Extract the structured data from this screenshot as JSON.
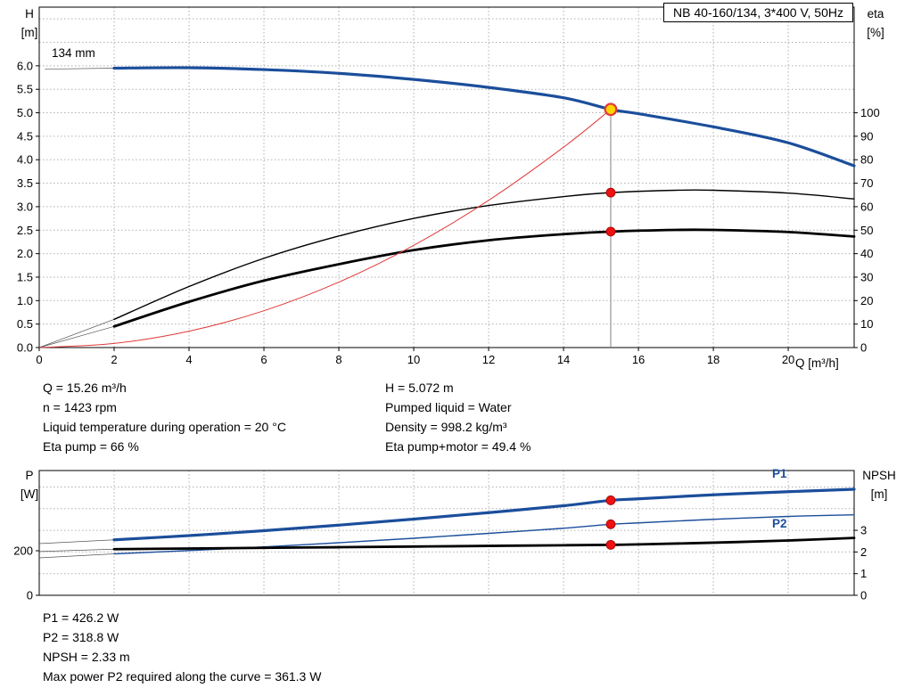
{
  "title_box": {
    "label": "NB 40-160/134, 3*400 V, 50Hz"
  },
  "labels": {
    "top_left_1": "H",
    "top_left_2": "[m]",
    "top_right_1": "eta",
    "top_right_2": "[%]",
    "x_label": "Q [m³/h]",
    "bottom_left_1": "P",
    "bottom_left_2": "[W]",
    "bottom_right_1": "NPSH",
    "bottom_right_2": "[m]",
    "impeller": "134 mm",
    "p1": "P1",
    "p2": "P2"
  },
  "operating_point_text": {
    "left": [
      "Q = 15.26 m³/h",
      "n = 1423 rpm",
      "Liquid temperature during operation = 20 °C",
      "Eta pump = 66 %"
    ],
    "right": [
      "H = 5.072 m",
      "Pumped liquid = Water",
      "Density = 998.2 kg/m³",
      "Eta pump+motor = 49.4 %"
    ]
  },
  "power_text": [
    "P1 = 426.2 W",
    "P2 = 318.8 W",
    "NPSH = 2.33 m",
    "Max power P2 required along the curve = 361.3 W"
  ],
  "colors": {
    "curve_blue": "#1b4e9b",
    "curve_black": "#000000",
    "curve_red": "#e03a3a",
    "duty_fill": "#ffd400",
    "duty_ring": "#e03a3a",
    "dot_red": "#ee1111",
    "grid": "#b0b0b0",
    "vline": "#808080"
  },
  "duty_point": {
    "q_m3h": 15.26,
    "h_m": 5.072,
    "eta_pump_pct": 66,
    "eta_pump_motor_pct": 49.4,
    "p1_w": 426.2,
    "p2_w": 318.8,
    "npsh_m": 2.33
  },
  "chart_data": [
    {
      "type": "line",
      "name": "qh-eta-chart",
      "title": "NB 40-160/134, 3*400 V, 50Hz",
      "xlabel": "Q [m³/h]",
      "xlim": [
        0,
        21.76
      ],
      "x_ticks": [
        0,
        2,
        4,
        6,
        8,
        10,
        12,
        14,
        16,
        18,
        20
      ],
      "left_axis": {
        "label": "H [m]",
        "range": [
          0,
          7.25
        ],
        "ticks": [
          0,
          0.5,
          1,
          1.5,
          2,
          2.5,
          3,
          3.5,
          4,
          4.5,
          5,
          5.5,
          6
        ],
        "decimals": 1
      },
      "right_axis": {
        "label": "eta [%]",
        "range": [
          0,
          145
        ],
        "ticks": [
          0,
          10,
          20,
          30,
          40,
          50,
          60,
          70,
          80,
          90,
          100
        ],
        "decimals": 0
      },
      "grid": {
        "x": [
          2,
          4,
          6,
          8,
          10,
          12,
          14,
          16,
          18,
          20
        ],
        "left": [
          0.5,
          1,
          1.5,
          2,
          2.5,
          3,
          3.5,
          4,
          4.5,
          5,
          5.5,
          6,
          6.5,
          7
        ]
      },
      "series": [
        {
          "name": "head-curve",
          "legend": "H (134 mm)",
          "axis": "left",
          "color": "#1b4e9b",
          "width": 3.2,
          "points": [
            [
              2,
              5.95
            ],
            [
              4,
              5.96
            ],
            [
              6,
              5.92
            ],
            [
              8,
              5.84
            ],
            [
              10,
              5.71
            ],
            [
              12,
              5.54
            ],
            [
              14,
              5.32
            ],
            [
              15.26,
              5.072
            ],
            [
              16,
              4.98
            ],
            [
              18,
              4.7
            ],
            [
              20,
              4.36
            ],
            [
              21.76,
              3.87
            ]
          ]
        },
        {
          "name": "eta-pump-curve",
          "legend": "Eta pump",
          "axis": "right",
          "color": "#000000",
          "width": 1.4,
          "points": [
            [
              2,
              12
            ],
            [
              4,
              26
            ],
            [
              6,
              38
            ],
            [
              8,
              47.5
            ],
            [
              10,
              55
            ],
            [
              12,
              60.5
            ],
            [
              14,
              64.3
            ],
            [
              15.26,
              66
            ],
            [
              17,
              67
            ],
            [
              18,
              67
            ],
            [
              20,
              65.8
            ],
            [
              21.76,
              63.3
            ]
          ]
        },
        {
          "name": "eta-pump-motor-curve",
          "legend": "Eta pump+motor",
          "axis": "right",
          "color": "#000000",
          "width": 2.8,
          "points": [
            [
              2,
              9
            ],
            [
              4,
              19.5
            ],
            [
              6,
              28.5
            ],
            [
              8,
              35.5
            ],
            [
              10,
              41.5
            ],
            [
              12,
              45.7
            ],
            [
              14,
              48.3
            ],
            [
              15.26,
              49.4
            ],
            [
              17,
              50.1
            ],
            [
              18,
              50.1
            ],
            [
              20,
              49.2
            ],
            [
              21.76,
              47.3
            ]
          ]
        },
        {
          "name": "system-curve",
          "legend": "System curve to duty point",
          "axis": "left",
          "color": "#e03a3a",
          "width": 1,
          "points": [
            [
              0,
              0
            ],
            [
              2,
              0.087
            ],
            [
              4,
              0.348
            ],
            [
              6,
              0.784
            ],
            [
              8,
              1.393
            ],
            [
              10,
              2.177
            ],
            [
              12,
              3.135
            ],
            [
              14,
              4.267
            ],
            [
              15.26,
              5.072
            ]
          ]
        }
      ],
      "connectors": [
        {
          "axis": "left",
          "points": [
            [
              0.15,
              5.93
            ],
            [
              2,
              5.95
            ]
          ]
        },
        {
          "axis": "right",
          "points": [
            [
              0,
              0
            ],
            [
              2,
              12
            ]
          ]
        },
        {
          "axis": "right",
          "points": [
            [
              0,
              0
            ],
            [
              2,
              9
            ]
          ]
        }
      ],
      "vline": {
        "x": 15.26,
        "axis": "left",
        "from": 0,
        "to": 5.072
      },
      "markers": [
        {
          "type": "duty",
          "axis": "left",
          "x": 15.26,
          "y": 5.072
        },
        {
          "type": "dot",
          "axis": "right",
          "x": 15.26,
          "y": 66
        },
        {
          "type": "dot",
          "axis": "right",
          "x": 15.26,
          "y": 49.4
        }
      ]
    },
    {
      "type": "line",
      "name": "power-npsh-chart",
      "xlim": [
        0,
        21.76
      ],
      "x_ticks": [],
      "left_axis": {
        "label": "P [W]",
        "range": [
          0,
          560
        ],
        "ticks": [
          0,
          200
        ],
        "decimals": 0
      },
      "right_axis": {
        "label": "NPSH [m]",
        "range": [
          0,
          5.76
        ],
        "ticks": [
          0,
          1,
          2,
          3
        ],
        "decimals": 0
      },
      "grid": {
        "x": [
          2,
          4,
          6,
          8,
          10,
          12,
          14,
          16,
          18,
          20
        ],
        "right": [
          1,
          2,
          3,
          4,
          5
        ]
      },
      "series": [
        {
          "name": "p1-curve",
          "legend": "P1",
          "axis": "left",
          "color": "#1b4e9b",
          "width": 3.2,
          "points": [
            [
              2,
              249
            ],
            [
              4,
              268
            ],
            [
              6,
              290
            ],
            [
              8,
              315
            ],
            [
              10,
              342
            ],
            [
              12,
              371
            ],
            [
              14,
              402
            ],
            [
              15.26,
              426.2
            ],
            [
              16,
              433
            ],
            [
              18,
              451
            ],
            [
              20,
              465
            ],
            [
              21.76,
              476
            ]
          ]
        },
        {
          "name": "p2-curve",
          "legend": "P2",
          "axis": "left",
          "color": "#1b4e9b",
          "width": 1.4,
          "points": [
            [
              2,
              186
            ],
            [
              4,
              201
            ],
            [
              6,
              217
            ],
            [
              8,
              236
            ],
            [
              10,
              256
            ],
            [
              12,
              278
            ],
            [
              14,
              301
            ],
            [
              15.26,
              318.8
            ],
            [
              16,
              325
            ],
            [
              18,
              341
            ],
            [
              20,
              354
            ],
            [
              21.76,
              361.3
            ]
          ]
        },
        {
          "name": "npsh-curve",
          "legend": "NPSH",
          "axis": "right",
          "color": "#000000",
          "width": 2.8,
          "points": [
            [
              2,
              2.13
            ],
            [
              4,
              2.16
            ],
            [
              6,
              2.19
            ],
            [
              8,
              2.22
            ],
            [
              10,
              2.25
            ],
            [
              12,
              2.28
            ],
            [
              14,
              2.31
            ],
            [
              15.26,
              2.33
            ],
            [
              16,
              2.35
            ],
            [
              18,
              2.43
            ],
            [
              20,
              2.53
            ],
            [
              21.76,
              2.65
            ]
          ]
        }
      ],
      "connectors": [
        {
          "axis": "left",
          "points": [
            [
              0,
              232
            ],
            [
              2,
              249
            ]
          ]
        },
        {
          "axis": "left",
          "points": [
            [
              0,
              168
            ],
            [
              2,
              186
            ]
          ]
        },
        {
          "axis": "right",
          "points": [
            [
              0,
              2.02
            ],
            [
              2,
              2.13
            ]
          ]
        }
      ],
      "markers": [
        {
          "type": "dot",
          "axis": "left",
          "x": 15.26,
          "y": 426.2
        },
        {
          "type": "dot",
          "axis": "left",
          "x": 15.26,
          "y": 318.8
        },
        {
          "type": "dot",
          "axis": "right",
          "x": 15.26,
          "y": 2.33
        }
      ]
    }
  ]
}
